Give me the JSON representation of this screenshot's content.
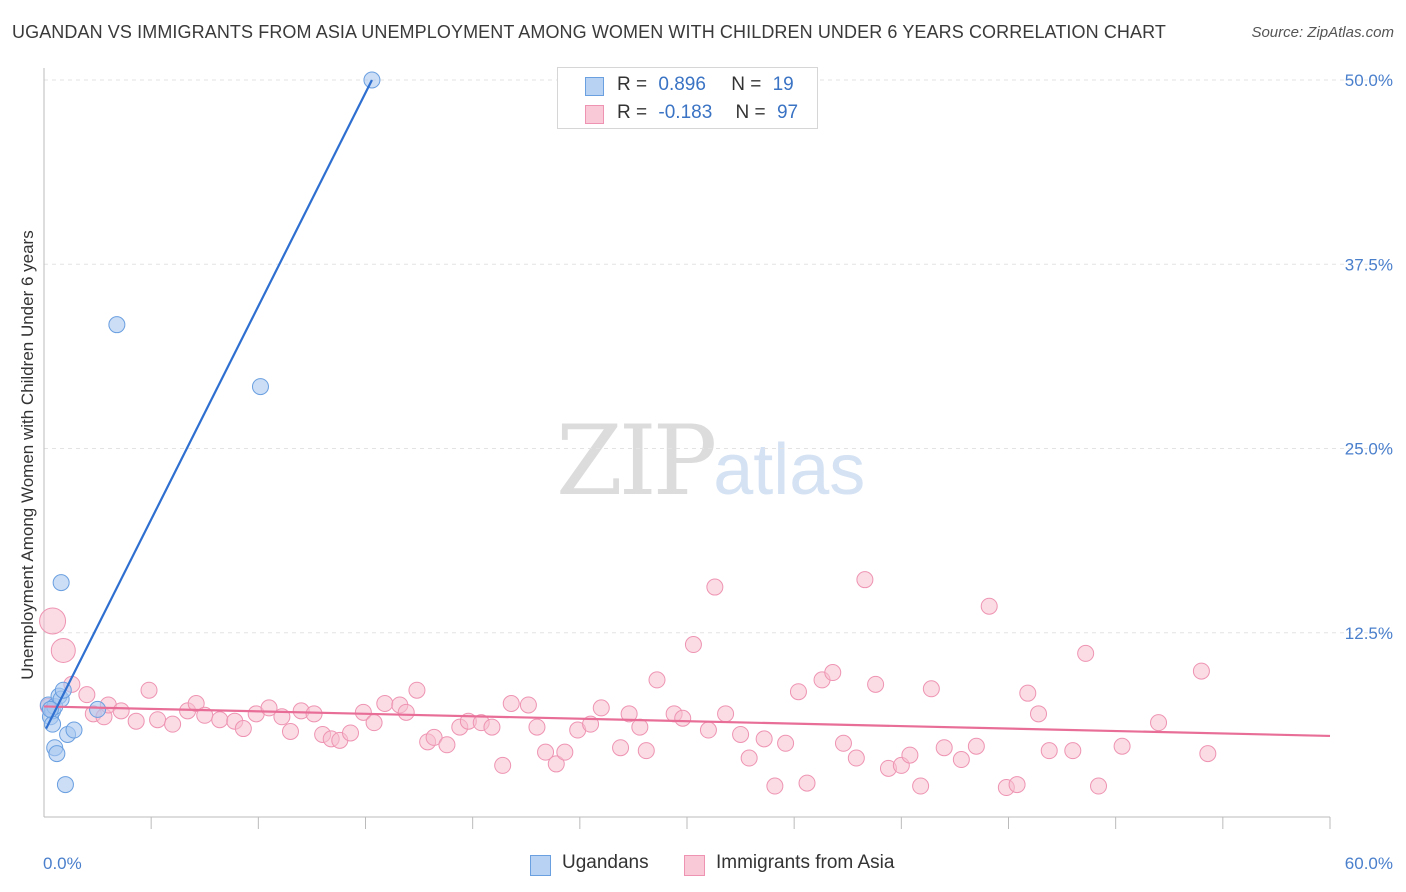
{
  "chart_data": {
    "type": "scatter",
    "title": "UGANDAN VS IMMIGRANTS FROM ASIA UNEMPLOYMENT AMONG WOMEN WITH CHILDREN UNDER 6 YEARS CORRELATION CHART",
    "source": "Source: ZipAtlas.com",
    "ylabel": "Unemployment Among Women with Children Under 6 years",
    "xlabel": "",
    "xlim": [
      0,
      60
    ],
    "ylim": [
      0,
      52
    ],
    "x_tick_labels": [
      "0.0%",
      "60.0%"
    ],
    "y_ticks": [
      12.5,
      25.0,
      37.5,
      50.0
    ],
    "y_tick_labels": [
      "12.5%",
      "25.0%",
      "37.5%",
      "50.0%"
    ],
    "grid": true,
    "watermark": {
      "part1": "ZIP",
      "part2": "atlas"
    },
    "legend_stats": [
      {
        "r_label": "R =",
        "r_value": "0.896",
        "n_label": "N =",
        "n_value": "19"
      },
      {
        "r_label": "R =",
        "r_value": "-0.183",
        "n_label": "N =",
        "n_value": "97"
      }
    ],
    "series": [
      {
        "name": "Ugandans",
        "color": "#a9c8f0",
        "edge": "#6a9fe0",
        "trend_color": "#2e6fd0",
        "trend": {
          "x": [
            0.1,
            15.3
          ],
          "y": [
            6.0,
            50.0
          ]
        },
        "points": [
          [
            0.2,
            7.6
          ],
          [
            0.3,
            6.8
          ],
          [
            0.4,
            7.2
          ],
          [
            0.4,
            6.3
          ],
          [
            0.5,
            7.5
          ],
          [
            0.5,
            4.7
          ],
          [
            0.6,
            4.3
          ],
          [
            0.7,
            8.2
          ],
          [
            0.8,
            8.0
          ],
          [
            0.8,
            15.9
          ],
          [
            0.9,
            8.6
          ],
          [
            1.0,
            2.2
          ],
          [
            1.1,
            5.6
          ],
          [
            1.4,
            5.9
          ],
          [
            2.5,
            7.3
          ],
          [
            3.4,
            33.4
          ],
          [
            10.1,
            29.2
          ],
          [
            15.3,
            50.0
          ],
          [
            0.3,
            7.3
          ]
        ]
      },
      {
        "name": "Immigrants from Asia",
        "color": "#f7bfd0",
        "edge": "#ee94b2",
        "trend_color": "#e86e98",
        "trend": {
          "x": [
            0.0,
            60.0
          ],
          "y": [
            7.5,
            5.5
          ]
        },
        "points": [
          [
            0.4,
            13.3
          ],
          [
            0.9,
            11.3
          ],
          [
            1.3,
            9.0
          ],
          [
            2.0,
            8.3
          ],
          [
            2.3,
            7.0
          ],
          [
            2.8,
            6.8
          ],
          [
            3.0,
            7.6
          ],
          [
            3.6,
            7.2
          ],
          [
            4.3,
            6.5
          ],
          [
            4.9,
            8.6
          ],
          [
            5.3,
            6.6
          ],
          [
            6.0,
            6.3
          ],
          [
            6.7,
            7.2
          ],
          [
            7.1,
            7.7
          ],
          [
            7.5,
            6.9
          ],
          [
            8.2,
            6.6
          ],
          [
            8.9,
            6.5
          ],
          [
            9.3,
            6.0
          ],
          [
            9.9,
            7.0
          ],
          [
            10.5,
            7.4
          ],
          [
            11.1,
            6.8
          ],
          [
            11.5,
            5.8
          ],
          [
            12.0,
            7.2
          ],
          [
            12.6,
            7.0
          ],
          [
            13.0,
            5.6
          ],
          [
            13.4,
            5.3
          ],
          [
            13.8,
            5.2
          ],
          [
            14.3,
            5.7
          ],
          [
            14.9,
            7.1
          ],
          [
            15.4,
            6.4
          ],
          [
            15.9,
            7.7
          ],
          [
            16.6,
            7.6
          ],
          [
            16.9,
            7.1
          ],
          [
            17.4,
            8.6
          ],
          [
            17.9,
            5.1
          ],
          [
            18.2,
            5.4
          ],
          [
            18.8,
            4.9
          ],
          [
            19.4,
            6.1
          ],
          [
            19.8,
            6.5
          ],
          [
            20.4,
            6.4
          ],
          [
            20.9,
            6.1
          ],
          [
            21.4,
            3.5
          ],
          [
            21.8,
            7.7
          ],
          [
            22.6,
            7.6
          ],
          [
            23.0,
            6.1
          ],
          [
            23.4,
            4.4
          ],
          [
            23.9,
            3.6
          ],
          [
            24.3,
            4.4
          ],
          [
            24.9,
            5.9
          ],
          [
            25.5,
            6.3
          ],
          [
            26.0,
            7.4
          ],
          [
            26.9,
            4.7
          ],
          [
            27.3,
            7.0
          ],
          [
            27.8,
            6.1
          ],
          [
            28.1,
            4.5
          ],
          [
            28.6,
            9.3
          ],
          [
            29.4,
            7.0
          ],
          [
            29.8,
            6.7
          ],
          [
            30.3,
            11.7
          ],
          [
            31.3,
            15.6
          ],
          [
            31.0,
            5.9
          ],
          [
            31.8,
            7.0
          ],
          [
            32.5,
            5.6
          ],
          [
            32.9,
            4.0
          ],
          [
            33.6,
            5.3
          ],
          [
            34.1,
            2.1
          ],
          [
            34.6,
            5.0
          ],
          [
            35.2,
            8.5
          ],
          [
            35.6,
            2.3
          ],
          [
            36.3,
            9.3
          ],
          [
            36.8,
            9.8
          ],
          [
            37.3,
            5.0
          ],
          [
            37.9,
            4.0
          ],
          [
            38.3,
            16.1
          ],
          [
            38.8,
            9.0
          ],
          [
            39.4,
            3.3
          ],
          [
            40.0,
            3.5
          ],
          [
            40.4,
            4.2
          ],
          [
            40.9,
            2.1
          ],
          [
            41.4,
            8.7
          ],
          [
            42.0,
            4.7
          ],
          [
            42.8,
            3.9
          ],
          [
            43.5,
            4.8
          ],
          [
            44.1,
            14.3
          ],
          [
            44.9,
            2.0
          ],
          [
            45.4,
            2.2
          ],
          [
            45.9,
            8.4
          ],
          [
            46.4,
            7.0
          ],
          [
            46.9,
            4.5
          ],
          [
            48.0,
            4.5
          ],
          [
            48.6,
            11.1
          ],
          [
            49.2,
            2.1
          ],
          [
            50.3,
            4.8
          ],
          [
            52.0,
            6.4
          ],
          [
            54.0,
            9.9
          ],
          [
            54.3,
            4.3
          ],
          [
            0.2,
            7.5
          ]
        ]
      }
    ]
  }
}
